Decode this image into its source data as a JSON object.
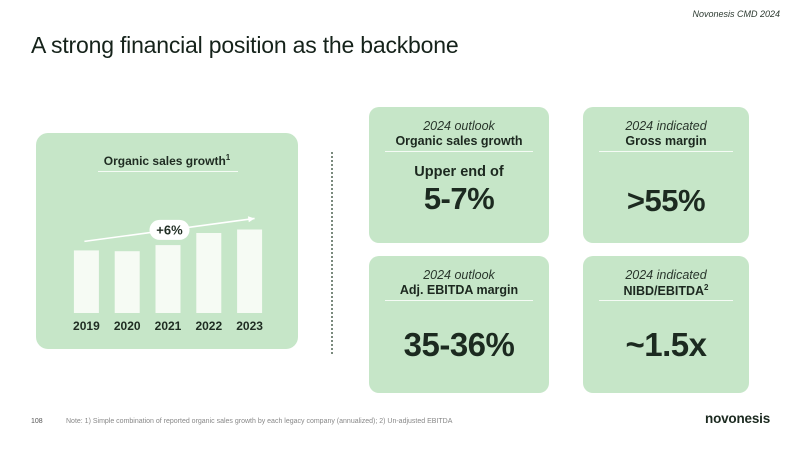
{
  "header": {
    "tag": "Novonesis CMD 2024"
  },
  "title": "A strong financial position as the backbone",
  "chart_data": {
    "type": "bar",
    "title": "Organic sales growth",
    "title_superscript": "1",
    "categories": [
      "2019",
      "2020",
      "2021",
      "2022",
      "2023"
    ],
    "values": [
      72,
      71,
      78,
      92,
      96
    ],
    "annotation": "+6%",
    "ylim": [
      0,
      100
    ],
    "grid": false,
    "colors": {
      "bar": "#f6fbf4",
      "background": "#c6e6c8",
      "arrow": "#ffffff"
    }
  },
  "kpis": [
    {
      "eyebrow": "2024 outlook",
      "label": "Organic sales growth",
      "label_sup": "",
      "sub": "Upper end of",
      "value": "5-7%"
    },
    {
      "eyebrow": "2024 indicated",
      "label": "Gross margin",
      "label_sup": "",
      "sub": "",
      "value": ">55%"
    },
    {
      "eyebrow": "2024 outlook",
      "label": "Adj. EBITDA margin",
      "label_sup": "",
      "sub": "",
      "value": "35-36%"
    },
    {
      "eyebrow": "2024 indicated",
      "label": "NIBD/EBITDA",
      "label_sup": "2",
      "sub": "",
      "value": "~1.5x"
    }
  ],
  "footer": {
    "page": "108",
    "note": "Note: 1) Simple combination of reported organic sales growth by each legacy company (annualized); 2) Un-adjusted EBITDA",
    "logo": "novonesis"
  },
  "colors": {
    "card": "#c6e6c8",
    "text": "#1c2a20"
  }
}
